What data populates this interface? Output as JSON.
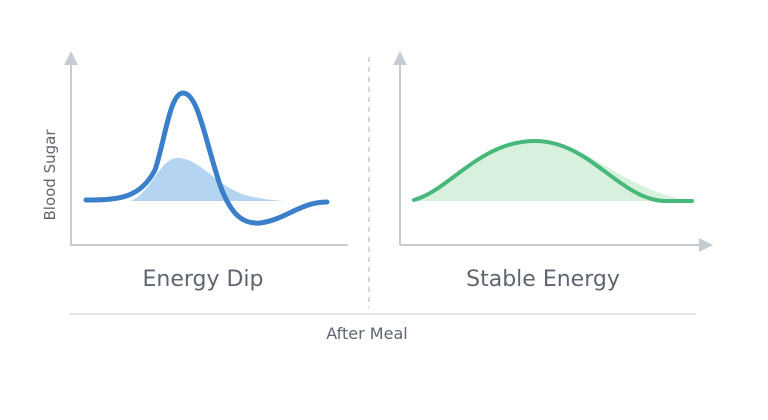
{
  "y_axis_label": "Blood Sugar",
  "left_panel": {
    "title": "Energy Dip"
  },
  "right_panel": {
    "title": "Stable Energy"
  },
  "x_axis_label": "After Meal",
  "colors": {
    "spike_line": "#3b7fca",
    "spike_fill": "#b5d4f1",
    "stable_line": "#46b97a",
    "stable_fill": "#d8f1de",
    "axis": "#c7ccd2",
    "text": "#5f6670"
  }
}
